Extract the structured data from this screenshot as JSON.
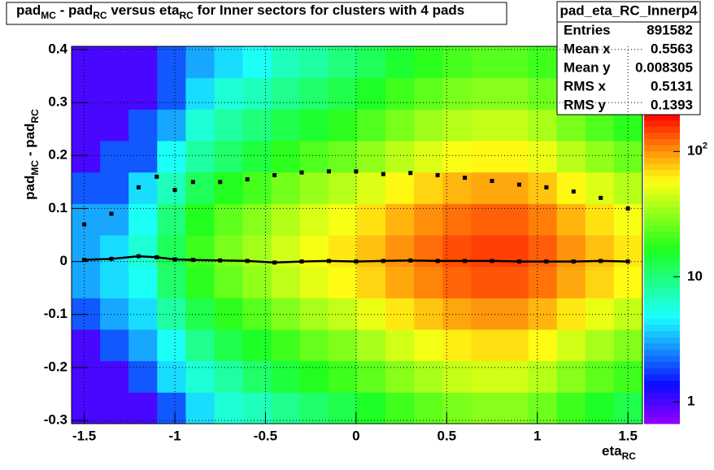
{
  "chart_data": {
    "type": "heatmap",
    "title": [
      "pad",
      "MC",
      " - pad",
      "RC",
      " versus eta",
      "RC",
      " for Inner sectors for clusters with 4 pads"
    ],
    "xlabel": [
      "eta",
      "RC"
    ],
    "ylabel": [
      "pad",
      "MC",
      " - pad",
      "RC"
    ],
    "xlim": [
      -1.57,
      1.58
    ],
    "ylim": [
      -0.306,
      0.406
    ],
    "xticks": [
      -1.5,
      -1,
      -0.5,
      0,
      0.5,
      1,
      1.5
    ],
    "yticks": [
      -0.3,
      -0.2,
      -0.1,
      0,
      0.1,
      0.2,
      0.3,
      0.4
    ],
    "grid": true,
    "zlim": [
      0.67,
      200
    ],
    "zlog": true,
    "zticks": [
      1,
      10,
      {
        "value": 100,
        "label": "10",
        "exponent": "2"
      }
    ],
    "x_edges": [
      -1.57,
      -1.4125,
      -1.255,
      -1.0975,
      -0.94,
      -0.7825,
      -0.625,
      -0.4675,
      -0.31,
      -0.1525,
      0.005,
      0.1625,
      0.32,
      0.4775,
      0.635,
      0.7925,
      0.95,
      1.1075,
      1.265,
      1.4225,
      1.58
    ],
    "y_edges": [
      -0.306,
      -0.2467,
      -0.1873,
      -0.128,
      -0.0687,
      -0.0093,
      0.05,
      0.1093,
      0.1687,
      0.228,
      0.2873,
      0.3467,
      0.406
    ],
    "z": [
      [
        1,
        1,
        1,
        2,
        4,
        6,
        7,
        9,
        11,
        13,
        16,
        20,
        24,
        28,
        30,
        30,
        26,
        20,
        16,
        13
      ],
      [
        1,
        1,
        2,
        4,
        6,
        8,
        11,
        14,
        17,
        20,
        24,
        30,
        36,
        42,
        45,
        45,
        39,
        30,
        24,
        20
      ],
      [
        1,
        2,
        3,
        5,
        9,
        13,
        16,
        20,
        25,
        29,
        36,
        45,
        54,
        63,
        68,
        68,
        59,
        45,
        36,
        29
      ],
      [
        2,
        3,
        4,
        8,
        13,
        18,
        23,
        29,
        36,
        42,
        52,
        65,
        78,
        91,
        98,
        98,
        85,
        65,
        52,
        42
      ],
      [
        3,
        4,
        5,
        11,
        18,
        25,
        32,
        41,
        50,
        59,
        72,
        90,
        108,
        126,
        135,
        135,
        117,
        90,
        72,
        59
      ],
      [
        3,
        4,
        6,
        12,
        20,
        28,
        35,
        45,
        55,
        65,
        80,
        100,
        120,
        140,
        150,
        150,
        130,
        100,
        80,
        65
      ],
      [
        3,
        3,
        5,
        10,
        17,
        24,
        30,
        38,
        47,
        55,
        68,
        85,
        102,
        119,
        128,
        128,
        111,
        85,
        68,
        55
      ],
      [
        2,
        2,
        4,
        7,
        12,
        17,
        21,
        27,
        33,
        39,
        48,
        60,
        72,
        84,
        90,
        90,
        78,
        60,
        48,
        39
      ],
      [
        1,
        2,
        2,
        5,
        8,
        11,
        14,
        18,
        22,
        26,
        32,
        40,
        48,
        56,
        60,
        60,
        52,
        40,
        32,
        26
      ],
      [
        1,
        1,
        2,
        3,
        6,
        8,
        10,
        13,
        15,
        18,
        22,
        28,
        34,
        39,
        42,
        42,
        36,
        28,
        22,
        18
      ],
      [
        1,
        1,
        1,
        2,
        4,
        6,
        7,
        9,
        11,
        13,
        16,
        20,
        24,
        28,
        30,
        30,
        26,
        20,
        16,
        13
      ],
      [
        1,
        1,
        1,
        2,
        3,
        4,
        5,
        7,
        8,
        10,
        12,
        15,
        18,
        21,
        23,
        23,
        20,
        15,
        12,
        10
      ]
    ],
    "series": [
      {
        "color": "#000000",
        "x": [
          -1.5,
          -1.35,
          -1.2,
          -1.1,
          -1.0,
          -0.9,
          -0.75,
          -0.6,
          -0.45,
          -0.3,
          -0.15,
          0,
          0.15,
          0.3,
          0.45,
          0.6,
          0.75,
          0.9,
          1.05,
          1.2,
          1.35,
          1.5
        ],
        "values": [
          0.003,
          0.005,
          0.01,
          0.008,
          0.004,
          0.003,
          0.002,
          0.001,
          -0.002,
          0,
          0.001,
          0,
          0.001,
          0.002,
          0.001,
          0.001,
          0.001,
          0,
          0,
          0,
          0.001,
          0
        ]
      },
      {
        "color": "#000000",
        "x": [
          -1.5,
          -1.35,
          -1.2,
          -1.1,
          -1.0,
          -0.9,
          -0.75,
          -0.6,
          -0.45,
          -0.3,
          -0.15,
          0,
          0.15,
          0.3,
          0.45,
          0.6,
          0.75,
          0.9,
          1.05,
          1.2,
          1.35,
          1.5
        ],
        "values": [
          0.07,
          0.09,
          0.14,
          0.16,
          0.135,
          0.15,
          0.15,
          0.155,
          0.163,
          0.168,
          0.17,
          0.17,
          0.165,
          0.167,
          0.163,
          0.158,
          0.152,
          0.145,
          0.14,
          0.132,
          0.12,
          0.1
        ]
      }
    ],
    "stats": {
      "name": "pad_eta_RC_Innerp4",
      "rows": [
        [
          "Entries",
          891582
        ],
        [
          "Mean x",
          0.5563
        ],
        [
          "Mean y",
          0.008305
        ],
        [
          "RMS x",
          0.5131
        ],
        [
          "RMS y",
          0.1393
        ]
      ]
    }
  }
}
